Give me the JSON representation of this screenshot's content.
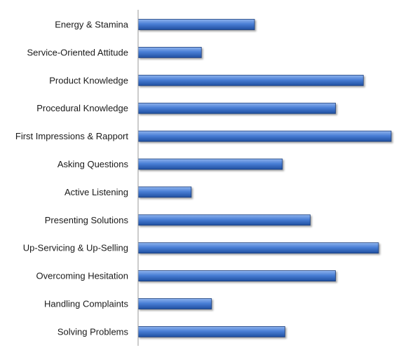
{
  "chart_data": {
    "type": "bar",
    "orientation": "horizontal",
    "title": "",
    "xlabel": "",
    "ylabel": "",
    "categories": [
      "Energy & Stamina",
      "Service-Oriented Attitude",
      "Product Knowledge",
      "Procedural Knowledge",
      "First Impressions & Rapport",
      "Asking Questions",
      "Active Listening",
      "Presenting Solutions",
      "Up-Servicing & Up-Selling",
      "Overcoming Hesitation",
      "Handling Complaints",
      "Solving Problems"
    ],
    "values": [
      46,
      25,
      89,
      78,
      100,
      57,
      21,
      68,
      95,
      78,
      29,
      58
    ],
    "xlim": [
      0,
      100
    ],
    "grid": false,
    "legend": "none",
    "tick_labels_visible": false,
    "colors": {
      "bar_light": "#8fb4ee",
      "bar_mid": "#4a7fd6",
      "bar_dark": "#1f4fa0",
      "bar_edge": "#1b3d7a",
      "axis": "#999999"
    }
  }
}
